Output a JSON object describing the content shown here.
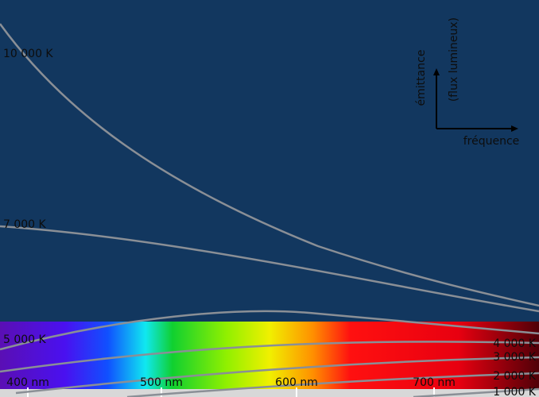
{
  "curves": [
    {
      "label": "10 000 K"
    },
    {
      "label": "7 000 K"
    },
    {
      "label": "5 000 K"
    },
    {
      "label": "4 000 K"
    },
    {
      "label": "3 000 K"
    },
    {
      "label": "2 000 K"
    },
    {
      "label": "1 000 K"
    }
  ],
  "wavelengths": [
    {
      "label": "400 nm"
    },
    {
      "label": "500 nm"
    },
    {
      "label": "600 nm"
    },
    {
      "label": "700 nm"
    }
  ],
  "legend": {
    "y_axis": "émittance",
    "y_axis_note": "(flux lumineux)",
    "x_axis": "fréquence"
  }
}
